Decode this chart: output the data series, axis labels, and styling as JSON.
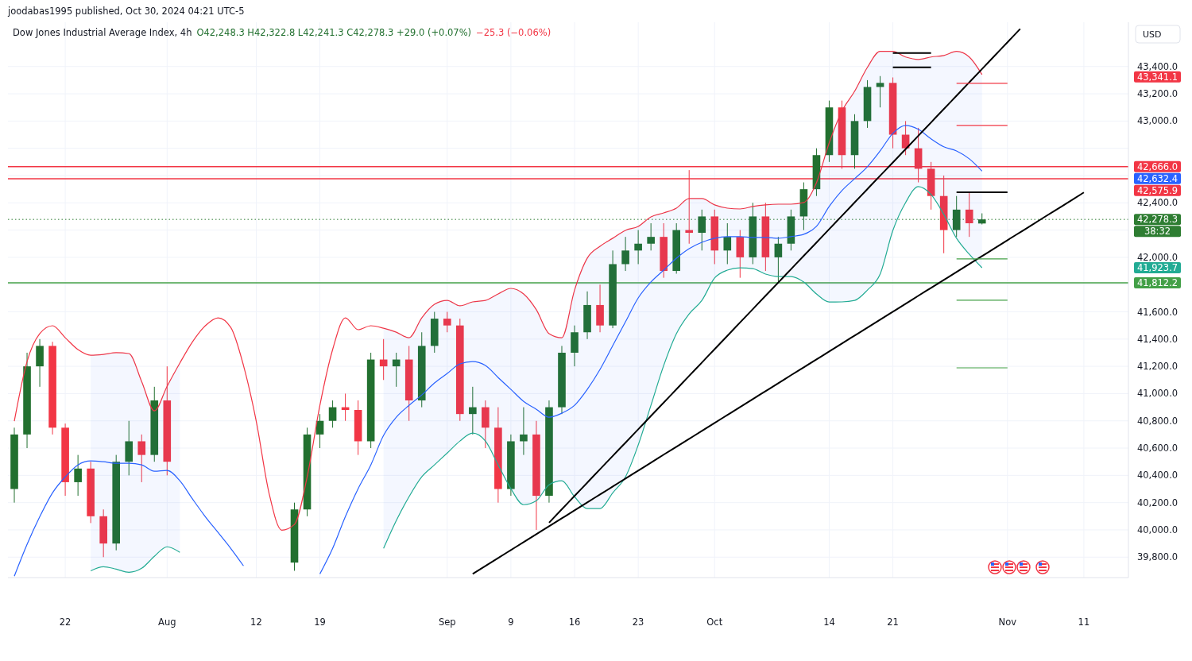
{
  "chart_data": {
    "type": "candlestick",
    "title": "Dow Jones Industrial Average Index, 4h",
    "subtitle": "joodabas1995 published, Oct 30, 2024 04:21 UTC-5",
    "ylabel": "USD",
    "categories": [
      null,
      null,
      null,
      null,
      "22",
      null,
      null,
      null,
      null,
      null,
      null,
      null,
      "Aug",
      null,
      null,
      null,
      null,
      null,
      null,
      "12",
      null,
      null,
      null,
      null,
      "19",
      null,
      null,
      null,
      null,
      null,
      null,
      null,
      null,
      null,
      "Sep",
      null,
      null,
      null,
      null,
      "9",
      null,
      null,
      null,
      null,
      "16",
      null,
      null,
      null,
      null,
      "23",
      null,
      null,
      null,
      null,
      null,
      "Oct",
      null,
      null,
      null,
      null,
      null,
      null,
      null,
      null,
      "14",
      null,
      null,
      null,
      null,
      "21",
      null,
      null,
      null,
      null,
      null,
      null,
      null,
      null,
      "Nov",
      null,
      null,
      null,
      null,
      null,
      "11",
      null,
      null,
      null
    ],
    "ohlc": [
      [
        40300,
        40750,
        40200,
        40700
      ],
      [
        40700,
        41300,
        40600,
        41200
      ],
      [
        41200,
        41400,
        41050,
        41350
      ],
      [
        41350,
        41380,
        40700,
        40750
      ],
      [
        40750,
        40780,
        40250,
        40350
      ],
      [
        40350,
        40550,
        40250,
        40450
      ],
      [
        40450,
        40500,
        40050,
        40100
      ],
      [
        40100,
        40150,
        39800,
        39900
      ],
      [
        39900,
        40550,
        39850,
        40500
      ],
      [
        40500,
        40800,
        40400,
        40650
      ],
      [
        40650,
        40700,
        40350,
        40550
      ],
      [
        40550,
        41050,
        40500,
        40950
      ],
      [
        40950,
        41200,
        40400,
        40500
      ],
      null,
      null,
      null,
      null,
      null,
      null,
      null,
      null,
      null,
      [
        39760,
        40200,
        39700,
        40150
      ],
      [
        40150,
        40750,
        40100,
        40700
      ],
      [
        40700,
        40850,
        40600,
        40800
      ],
      [
        40800,
        40950,
        40750,
        40900
      ],
      [
        40900,
        41000,
        40800,
        40880
      ],
      [
        40880,
        40950,
        40550,
        40650
      ],
      [
        40650,
        41300,
        40600,
        41250
      ],
      [
        41250,
        41400,
        41100,
        41200
      ],
      [
        41200,
        41300,
        41050,
        41250
      ],
      [
        41250,
        41350,
        40800,
        40950
      ],
      [
        40950,
        41450,
        40900,
        41350
      ],
      [
        41350,
        41600,
        41300,
        41550
      ],
      [
        41550,
        41600,
        41450,
        41500
      ],
      [
        41500,
        41550,
        40800,
        40850
      ],
      [
        40850,
        41050,
        40700,
        40900
      ],
      [
        40900,
        40950,
        40600,
        40750
      ],
      [
        40750,
        40900,
        40200,
        40300
      ],
      [
        40300,
        40700,
        40250,
        40650
      ],
      [
        40650,
        40900,
        40550,
        40700
      ],
      [
        40700,
        40800,
        40000,
        40250
      ],
      [
        40250,
        40950,
        40200,
        40900
      ],
      [
        40900,
        41350,
        40850,
        41300
      ],
      [
        41300,
        41500,
        41200,
        41450
      ],
      [
        41450,
        41750,
        41400,
        41650
      ],
      [
        41650,
        41800,
        41450,
        41500
      ],
      [
        41500,
        42050,
        41480,
        41950
      ],
      [
        41950,
        42150,
        41900,
        42050
      ],
      [
        42050,
        42200,
        41950,
        42100
      ],
      [
        42100,
        42250,
        42050,
        42150
      ],
      [
        42150,
        42250,
        41850,
        41900
      ],
      [
        41900,
        42250,
        41880,
        42200
      ],
      [
        42200,
        42640,
        42100,
        42180
      ],
      [
        42180,
        42350,
        42050,
        42300
      ],
      [
        42300,
        42350,
        41950,
        42050
      ],
      [
        42050,
        42250,
        41950,
        42150
      ],
      [
        42150,
        42200,
        41850,
        42000
      ],
      [
        42000,
        42400,
        41950,
        42300
      ],
      [
        42300,
        42400,
        41900,
        42000
      ],
      [
        42000,
        42150,
        41820,
        42100
      ],
      [
        42100,
        42350,
        42050,
        42300
      ],
      [
        42300,
        42550,
        42200,
        42500
      ],
      [
        42500,
        42800,
        42450,
        42750
      ],
      [
        42750,
        43150,
        42700,
        43100
      ],
      [
        43100,
        43150,
        42650,
        42750
      ],
      [
        42750,
        43050,
        42650,
        43000
      ],
      [
        43000,
        43300,
        42950,
        43250
      ],
      [
        43250,
        43330,
        43100,
        43280
      ],
      [
        43280,
        43320,
        42800,
        42900
      ],
      [
        42900,
        43000,
        42750,
        42800
      ],
      [
        42800,
        42950,
        42550,
        42650
      ],
      [
        42650,
        42700,
        42350,
        42450
      ],
      [
        42450,
        42600,
        42030,
        42200
      ],
      [
        42200,
        42450,
        42150,
        42350
      ],
      [
        42350,
        42480,
        42150,
        42250
      ],
      [
        42248.3,
        42322.8,
        42241.3,
        42278.3
      ],
      null,
      null,
      null,
      null,
      null,
      null,
      null,
      null,
      null,
      null,
      null
    ],
    "series": [
      {
        "type": "line",
        "color": "#f23645",
        "values": [
          40798,
          41235,
          41440,
          41498,
          41410,
          41323,
          41282,
          41288,
          41300,
          41294,
          41089,
          40873,
          41054,
          41224,
          41381,
          41498,
          41556,
          41486,
          41206,
          40798,
          40272,
          39998,
          40040,
          40389,
          40914,
          41323,
          41556,
          41469,
          41498,
          41480,
          41451,
          41410,
          41556,
          41655,
          41684,
          41644,
          41673,
          41684,
          41731,
          41772,
          41731,
          41615,
          41440,
          41410,
          41760,
          41994,
          42081,
          42140,
          42198,
          42227,
          42297,
          42326,
          42361,
          42431,
          42431,
          42385,
          42361,
          42355,
          42373,
          42385,
          42390,
          42390,
          42402,
          42548,
          42840,
          43073,
          43219,
          43394,
          43511,
          43511,
          43470,
          43452,
          43470,
          43481,
          43511,
          43470,
          43341.1,
          null,
          null,
          null,
          null,
          null,
          null,
          null,
          null,
          null,
          null,
          null
        ]
      },
      {
        "type": "line",
        "color": "#2962ff",
        "values": [
          39660,
          39893,
          40097,
          40272,
          40389,
          40477,
          40506,
          40500,
          40489,
          40489,
          40477,
          40430,
          40436,
          40360,
          40226,
          40097,
          39981,
          39864,
          39736,
          null,
          null,
          null,
          null,
          null,
          39677,
          39864,
          40097,
          40302,
          40477,
          40693,
          40827,
          40914,
          40990,
          41078,
          41148,
          41218,
          41235,
          41206,
          41118,
          41031,
          40943,
          40885,
          40827,
          40856,
          40914,
          41031,
          41177,
          41352,
          41527,
          41702,
          41819,
          41906,
          41994,
          42064,
          42110,
          42140,
          42152,
          42152,
          42146,
          42146,
          42140,
          42152,
          42169,
          42227,
          42373,
          42490,
          42577,
          42665,
          42781,
          42910,
          42968,
          42939,
          42869,
          42811,
          42781,
          42723,
          42632.4,
          null,
          null,
          null,
          null,
          null,
          null,
          null,
          null,
          null,
          null,
          null
        ],
        "upper": [
          null,
          null,
          null,
          null,
          null,
          null,
          41282,
          41288,
          41300,
          41294,
          41089,
          40873,
          41054,
          41224,
          null,
          null,
          null,
          null,
          null,
          null,
          null,
          null,
          null,
          null,
          null,
          null,
          null,
          null,
          null,
          41480,
          41451,
          41410,
          41556,
          41655,
          41684,
          41644,
          41673,
          41684,
          41731,
          41772,
          41731,
          41615,
          41440,
          41410,
          41760,
          41994,
          42081,
          42140,
          42198,
          42227,
          42297,
          42326,
          42361,
          42431,
          42431,
          42385,
          42361,
          42355,
          42373,
          42385,
          42390,
          42390,
          42402,
          42548,
          42840,
          43073,
          43219,
          43394,
          43511,
          43511,
          43470,
          43452,
          43470,
          43481,
          43511,
          43470,
          43341.1,
          null,
          null,
          null,
          null,
          null,
          null,
          null,
          null,
          null,
          null,
          null
        ],
        "lower": [
          null,
          null,
          null,
          null,
          null,
          null,
          39700,
          39730,
          39712,
          39689,
          39718,
          39806,
          39876,
          39835,
          null,
          null,
          null,
          null,
          null,
          null,
          null,
          null,
          null,
          null,
          null,
          null,
          null,
          null,
          null,
          39864,
          40068,
          40243,
          40389,
          40477,
          40564,
          40652,
          40710,
          40652,
          40477,
          40302,
          40185,
          40214,
          40331,
          40360,
          40243,
          40156,
          40156,
          40272,
          40389,
          40623,
          40914,
          41206,
          41440,
          41585,
          41684,
          41848,
          41906,
          41923,
          41917,
          41877,
          41859,
          41859,
          41819,
          41731,
          41672,
          41673,
          41684,
          41760,
          41877,
          42198,
          42402,
          42519,
          42461,
          42315,
          42140,
          42023,
          41923.7,
          null,
          null,
          null,
          null,
          null,
          null,
          null,
          null,
          null,
          null,
          null
        ]
      },
      {
        "type": "line",
        "color": "#22ab94",
        "values": [
          null,
          null,
          null,
          null,
          null,
          null,
          39700,
          39730,
          39712,
          39689,
          39718,
          39806,
          39876,
          39835,
          null,
          null,
          null,
          null,
          null,
          null,
          null,
          null,
          null,
          null,
          null,
          null,
          null,
          null,
          null,
          39864,
          40068,
          40243,
          40389,
          40477,
          40564,
          40652,
          40710,
          40652,
          40477,
          40302,
          40185,
          40214,
          40331,
          40360,
          40243,
          40156,
          40156,
          40272,
          40389,
          40623,
          40914,
          41206,
          41440,
          41585,
          41684,
          41848,
          41906,
          41923,
          41917,
          41877,
          41859,
          41859,
          41819,
          41731,
          41672,
          41673,
          41684,
          41760,
          41877,
          42198,
          42402,
          42519,
          42461,
          42315,
          42140,
          42023,
          41923.7,
          null,
          null,
          null,
          null,
          null,
          null,
          null,
          null,
          null,
          null,
          null
        ]
      },
      {
        "type": "line",
        "color": "#000000",
        "values": [
          null,
          null,
          null,
          null,
          null,
          null,
          null,
          null,
          null,
          null,
          null,
          null,
          null,
          null,
          null,
          null,
          null,
          null,
          null,
          null,
          null,
          null,
          null,
          null,
          null,
          null,
          null,
          null,
          null,
          null,
          null,
          null,
          null,
          null,
          null,
          null,
          null,
          null,
          null,
          null,
          null,
          null,
          40053,
          40151,
          40249,
          40347,
          40445,
          40543,
          40640,
          40738,
          40836,
          40934,
          41032,
          41130,
          41228,
          41326,
          41424,
          41522,
          41620,
          41718,
          41815,
          41913,
          42011,
          42109,
          42207,
          42305,
          42403,
          42501,
          42599,
          42696,
          42794,
          42892,
          42990,
          43088,
          43186,
          43284,
          43382,
          43480,
          43578,
          43676,
          null,
          null,
          null,
          null,
          null,
          null,
          null,
          null
        ]
      },
      {
        "type": "line",
        "color": "#000000",
        "values": [
          null,
          null,
          null,
          null,
          null,
          null,
          null,
          null,
          null,
          null,
          null,
          null,
          null,
          null,
          null,
          null,
          null,
          null,
          null,
          null,
          null,
          null,
          null,
          null,
          null,
          null,
          null,
          null,
          null,
          null,
          null,
          null,
          null,
          null,
          null,
          null,
          39677,
          39735,
          39794,
          39852,
          39910,
          39969,
          40027,
          40085,
          40143,
          40202,
          40260,
          40318,
          40377,
          40435,
          40493,
          40552,
          40610,
          40668,
          40726,
          40785,
          40843,
          40901,
          40960,
          41018,
          41076,
          41135,
          41193,
          41251,
          41309,
          41368,
          41426,
          41484,
          41543,
          41601,
          41659,
          41718,
          41776,
          41834,
          41892,
          41951,
          42009,
          42067,
          42126,
          42184,
          42242,
          42301,
          42359,
          42417,
          42476,
          null,
          null,
          null
        ]
      },
      {
        "type": "line",
        "color": "#f23645",
        "values": [
          null,
          null,
          null,
          null,
          null,
          null,
          null,
          null,
          null,
          null,
          null,
          null,
          null,
          null,
          null,
          null,
          null,
          null,
          null,
          null,
          null,
          null,
          null,
          null,
          null,
          null,
          null,
          null,
          null,
          null,
          null,
          null,
          null,
          null,
          null,
          null,
          null,
          null,
          null,
          null,
          null,
          null,
          null,
          null,
          null,
          null,
          null,
          null,
          null,
          null,
          null,
          null,
          null,
          null,
          null,
          null,
          null,
          null,
          null,
          null,
          null,
          null,
          null,
          null,
          null,
          null,
          null,
          null,
          null,
          null,
          null,
          null,
          null,
          null,
          43277,
          43277,
          43277,
          43277,
          43277,
          null,
          null,
          null,
          null,
          null,
          null,
          null,
          null,
          null
        ]
      },
      {
        "type": "line",
        "color": "#f23645",
        "values": [
          null,
          null,
          null,
          null,
          null,
          null,
          null,
          null,
          null,
          null,
          null,
          null,
          null,
          null,
          null,
          null,
          null,
          null,
          null,
          null,
          null,
          null,
          null,
          null,
          null,
          null,
          null,
          null,
          null,
          null,
          null,
          null,
          null,
          null,
          null,
          null,
          null,
          null,
          null,
          null,
          null,
          null,
          null,
          null,
          null,
          null,
          null,
          null,
          null,
          null,
          null,
          null,
          null,
          null,
          null,
          null,
          null,
          null,
          null,
          null,
          null,
          null,
          null,
          null,
          null,
          null,
          null,
          null,
          null,
          null,
          null,
          null,
          null,
          null,
          42968,
          42968,
          42968,
          42968,
          42968,
          null,
          null,
          null,
          null,
          null,
          null,
          null,
          null,
          null
        ]
      },
      {
        "type": "line",
        "color": "#000000",
        "values": [
          null,
          null,
          null,
          null,
          null,
          null,
          null,
          null,
          null,
          null,
          null,
          null,
          null,
          null,
          null,
          null,
          null,
          null,
          null,
          null,
          null,
          null,
          null,
          null,
          null,
          null,
          null,
          null,
          null,
          null,
          null,
          null,
          null,
          null,
          null,
          null,
          null,
          null,
          null,
          null,
          null,
          null,
          null,
          null,
          null,
          null,
          null,
          null,
          null,
          null,
          null,
          null,
          null,
          null,
          null,
          null,
          null,
          null,
          null,
          null,
          null,
          null,
          null,
          null,
          null,
          null,
          null,
          null,
          null,
          43499,
          43499,
          43499,
          43499,
          null,
          null,
          null,
          null,
          null,
          null,
          null,
          null,
          null,
          null,
          null,
          null,
          null,
          null,
          null
        ]
      },
      {
        "type": "line",
        "color": "#000000",
        "values": [
          null,
          null,
          null,
          null,
          null,
          null,
          null,
          null,
          null,
          null,
          null,
          null,
          null,
          null,
          null,
          null,
          null,
          null,
          null,
          null,
          null,
          null,
          null,
          null,
          null,
          null,
          null,
          null,
          null,
          null,
          null,
          null,
          null,
          null,
          null,
          null,
          null,
          null,
          null,
          null,
          null,
          null,
          null,
          null,
          null,
          null,
          null,
          null,
          null,
          null,
          null,
          null,
          null,
          null,
          null,
          null,
          null,
          null,
          null,
          null,
          null,
          null,
          null,
          null,
          null,
          null,
          null,
          null,
          null,
          43394,
          43394,
          43394,
          43394,
          null,
          null,
          null,
          null,
          null,
          null,
          null,
          null,
          null,
          null,
          null,
          null,
          null,
          null,
          null
        ]
      },
      {
        "type": "line",
        "color": "#000000",
        "values": [
          null,
          null,
          null,
          null,
          null,
          null,
          null,
          null,
          null,
          null,
          null,
          null,
          null,
          null,
          null,
          null,
          null,
          null,
          null,
          null,
          null,
          null,
          null,
          null,
          null,
          null,
          null,
          null,
          null,
          null,
          null,
          null,
          null,
          null,
          null,
          null,
          null,
          null,
          null,
          null,
          null,
          null,
          null,
          null,
          null,
          null,
          null,
          null,
          null,
          null,
          null,
          null,
          null,
          null,
          null,
          null,
          null,
          null,
          null,
          null,
          null,
          null,
          null,
          null,
          null,
          null,
          null,
          null,
          null,
          null,
          null,
          null,
          null,
          null,
          42478,
          42478,
          42478,
          42478,
          42478,
          null,
          null,
          null,
          null,
          null,
          null,
          null,
          null,
          null
        ]
      },
      {
        "type": "line",
        "color": "#43a047",
        "values": [
          null,
          null,
          null,
          null,
          null,
          null,
          null,
          null,
          null,
          null,
          null,
          null,
          null,
          null,
          null,
          null,
          null,
          null,
          null,
          null,
          null,
          null,
          null,
          null,
          null,
          null,
          null,
          null,
          null,
          null,
          null,
          null,
          null,
          null,
          null,
          null,
          null,
          null,
          null,
          null,
          null,
          null,
          null,
          null,
          null,
          null,
          null,
          null,
          null,
          null,
          null,
          null,
          null,
          null,
          null,
          null,
          null,
          null,
          null,
          null,
          null,
          null,
          null,
          null,
          null,
          null,
          null,
          null,
          null,
          null,
          null,
          null,
          null,
          null,
          41988,
          41988,
          41988,
          41988,
          41988,
          null,
          null,
          null,
          null,
          null,
          null,
          null,
          null,
          null
        ]
      },
      {
        "type": "line",
        "color": "#43a047",
        "values": [
          null,
          null,
          null,
          null,
          null,
          null,
          null,
          null,
          null,
          null,
          null,
          null,
          null,
          null,
          null,
          null,
          null,
          null,
          null,
          null,
          null,
          null,
          null,
          null,
          null,
          null,
          null,
          null,
          null,
          null,
          null,
          null,
          null,
          null,
          null,
          null,
          null,
          null,
          null,
          null,
          null,
          null,
          null,
          null,
          null,
          null,
          null,
          null,
          null,
          null,
          null,
          null,
          null,
          null,
          null,
          null,
          null,
          null,
          null,
          null,
          null,
          null,
          null,
          null,
          null,
          null,
          null,
          null,
          null,
          null,
          null,
          null,
          null,
          null,
          41685,
          41685,
          41685,
          41685,
          41685,
          null,
          null,
          null,
          null,
          null,
          null,
          null,
          null,
          null
        ]
      },
      {
        "type": "line",
        "color": "#43a047",
        "values": [
          null,
          null,
          null,
          null,
          null,
          null,
          null,
          null,
          null,
          null,
          null,
          null,
          null,
          null,
          null,
          null,
          null,
          null,
          null,
          null,
          null,
          null,
          null,
          null,
          null,
          null,
          null,
          null,
          null,
          null,
          null,
          null,
          null,
          null,
          null,
          null,
          null,
          null,
          null,
          null,
          null,
          null,
          null,
          null,
          null,
          null,
          null,
          null,
          null,
          null,
          null,
          null,
          null,
          null,
          null,
          null,
          null,
          null,
          null,
          null,
          null,
          null,
          null,
          null,
          null,
          null,
          null,
          null,
          null,
          null,
          null,
          null,
          null,
          null,
          41189,
          41189,
          41189,
          41189,
          41189,
          null,
          null,
          null,
          null,
          null,
          null,
          null,
          null,
          null
        ]
      }
    ],
    "ref_lines": [
      {
        "axis": "y",
        "value": 42666,
        "label": "42,666.0",
        "color": "#f23645"
      },
      {
        "axis": "y",
        "value": 42575.9,
        "label": "42,575.9",
        "color": "#f23645"
      },
      {
        "axis": "y",
        "value": 42278.3,
        "label": "42,278.3",
        "color": "#2e7d32",
        "line_style": "dotted"
      },
      {
        "axis": "y",
        "value": 41812.2,
        "label": "41,812.2",
        "color": "#43a047"
      }
    ],
    "annotations": [
      "O42,248.3 H42,322.8 L42,241.3 C42,278.3 +29.0 (+0.07%)",
      "−25.3 (−0.06%)",
      "38:32",
      "43,341.1",
      "42,632.4",
      "41,923.7"
    ],
    "ylim": [
      39650,
      43725
    ],
    "yticks": [
      {
        "value": 39800,
        "label": "39,800.0"
      },
      {
        "value": 40000,
        "label": "40,000.0"
      },
      {
        "value": 40200,
        "label": "40,200.0"
      },
      {
        "value": 40400,
        "label": "40,400.0"
      },
      {
        "value": 40600,
        "label": "40,600.0"
      },
      {
        "value": 40800,
        "label": "40,800.0"
      },
      {
        "value": 41000,
        "label": "41,000.0"
      },
      {
        "value": 41200,
        "label": "41,200.0"
      },
      {
        "value": 41400,
        "label": "41,400.0"
      },
      {
        "value": 41600,
        "label": "41,600.0"
      },
      {
        "value": 41800,
        "label": null
      },
      {
        "value": 42000,
        "label": "42,000.0"
      },
      {
        "value": 42200,
        "label": null
      },
      {
        "value": 42400,
        "label": "42,400.0"
      },
      {
        "value": 42600,
        "label": null
      },
      {
        "value": 42800,
        "label": null
      },
      {
        "value": 43000,
        "label": "43,000.0"
      },
      {
        "value": 43200,
        "label": "43,200.0"
      },
      {
        "value": 43400,
        "label": "43,400.0"
      }
    ],
    "grid": true
  }
}
